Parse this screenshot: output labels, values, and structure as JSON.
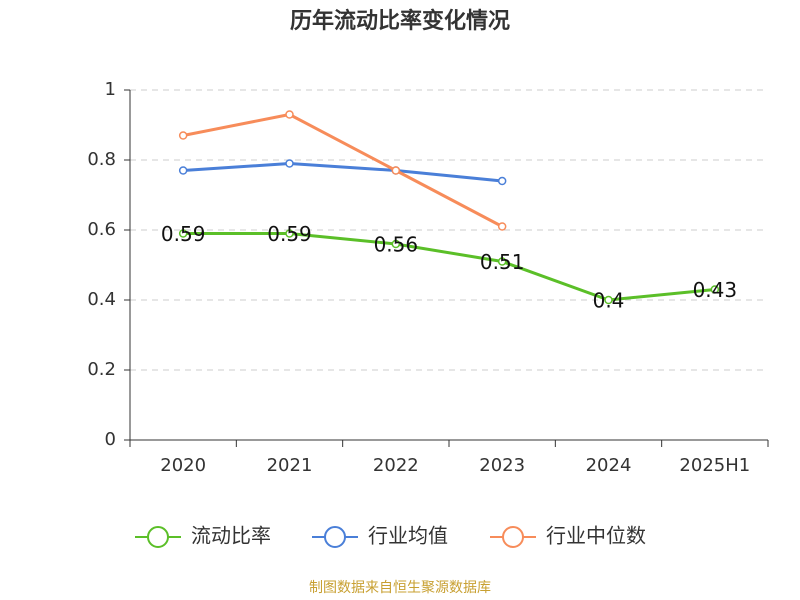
{
  "chart_data": {
    "type": "line",
    "title": "历年流动比率变化情况",
    "categories": [
      "2020",
      "2021",
      "2022",
      "2023",
      "2024",
      "2025H1"
    ],
    "series": [
      {
        "name": "流动比率",
        "color": "#5bbf28",
        "values": [
          0.59,
          0.59,
          0.56,
          0.51,
          0.4,
          0.43
        ]
      },
      {
        "name": "行业均值",
        "color": "#4a7fd8",
        "values": [
          0.77,
          0.79,
          0.77,
          0.74,
          null,
          null
        ]
      },
      {
        "name": "行业中位数",
        "color": "#f78c5a",
        "values": [
          0.87,
          0.93,
          0.77,
          0.61,
          null,
          null
        ]
      }
    ],
    "ylim": [
      0,
      1
    ],
    "yticks": [
      0,
      0.2,
      0.4,
      0.6,
      0.8,
      1
    ],
    "grid": true,
    "source": "制图数据来自恒生聚源数据库"
  }
}
